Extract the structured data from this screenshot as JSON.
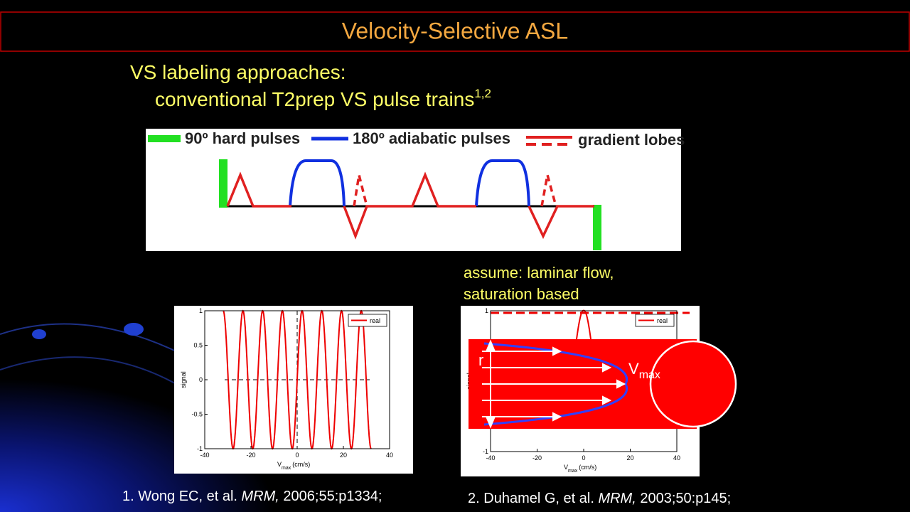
{
  "title": "Velocity-Selective ASL",
  "bullets": {
    "heading": "VS labeling approaches:",
    "item": "conventional T2prep VS pulse trains",
    "item_sup": "1,2"
  },
  "diagram": {
    "legend": [
      "90º hard pulses",
      "180º adiabatic pulses",
      "gradient lobes"
    ]
  },
  "annotation": [
    "assume: laminar flow,",
    "saturation based"
  ],
  "plots": [
    {
      "legend": "real",
      "ylabel": "signal",
      "xlabel": "V",
      "xlabel_sub": "max",
      "xlabel_unit": "(cm/s)",
      "xlim": [
        -40,
        40
      ],
      "ylim": [
        -1,
        1
      ],
      "xticks": [
        -40,
        -20,
        0,
        20,
        40
      ],
      "yticks": [
        -1,
        -0.5,
        0,
        0.5,
        1
      ]
    },
    {
      "legend": "real",
      "ylabel": "signal",
      "xlabel": "V",
      "xlabel_sub": "max",
      "xlabel_unit": "(cm/s)",
      "xlim": [
        -40,
        40
      ],
      "ylim": [
        -1,
        1
      ],
      "xticks": [
        -40,
        -20,
        0,
        20,
        40
      ],
      "yticks": [
        -1,
        1
      ]
    }
  ],
  "flow_labels": {
    "radius": "r",
    "velocity": "V",
    "velocity_sub": "max"
  },
  "references": [
    {
      "number": "1.",
      "authors": "Wong EC, et al.",
      "journal": "MRM,",
      "citation": "2006;55:p1334;"
    },
    {
      "number": "2.",
      "authors": "Duhamel G, et al.",
      "journal": "MRM,",
      "citation": "2003;50:p145;"
    }
  ]
}
